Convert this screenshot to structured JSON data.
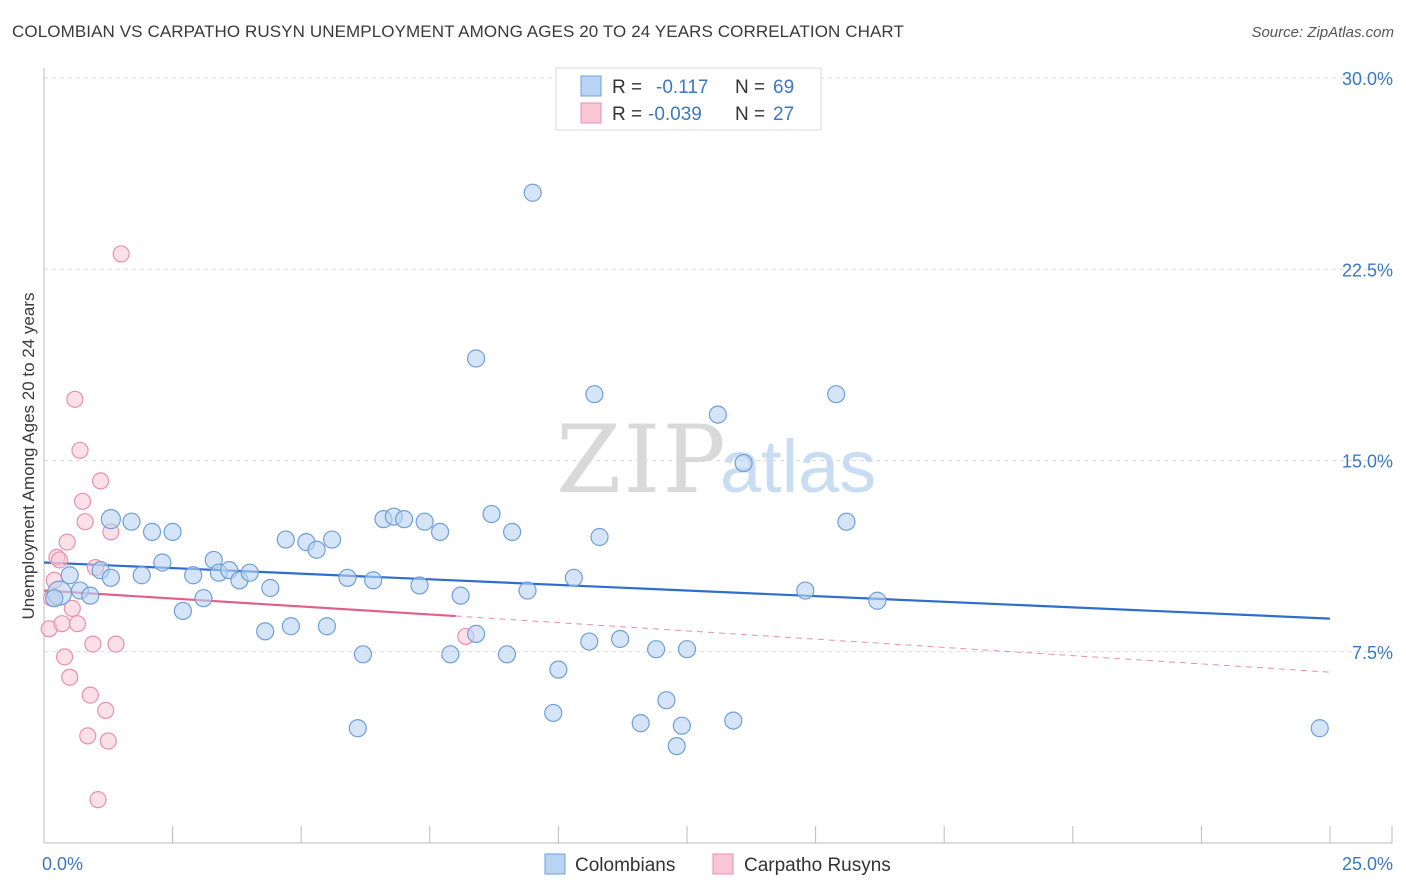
{
  "header": {
    "title": "COLOMBIAN VS CARPATHO RUSYN UNEMPLOYMENT AMONG AGES 20 TO 24 YEARS CORRELATION CHART",
    "source": "Source: ZipAtlas.com"
  },
  "watermark": {
    "zip": "ZIP",
    "atlas": "atlas"
  },
  "colors": {
    "blue_fill": "#b9d3f2",
    "blue_stroke": "#6f9fd9",
    "blue_line": "#2f6fcb",
    "pink_fill": "#f8c6d5",
    "pink_stroke": "#e890ad",
    "pink_line": "#e0608a",
    "grid": "#dcdcdc",
    "axis": "#bbbbbb",
    "tick_text": "#3b78c4"
  },
  "stats_legend": {
    "rows": [
      {
        "r_label": "R =",
        "r_value": "-0.117",
        "n_label": "N =",
        "n_value": "69"
      },
      {
        "r_label": "R =",
        "r_value": "-0.039",
        "n_label": "N =",
        "n_value": "27"
      }
    ]
  },
  "chart_data": {
    "type": "scatter",
    "title": "COLOMBIAN VS CARPATHO RUSYN UNEMPLOYMENT AMONG AGES 20 TO 24 YEARS CORRELATION CHART",
    "xlabel": "",
    "ylabel": "Unemployment Among Ages 20 to 24 years",
    "xlim": [
      0,
      25
    ],
    "ylim": [
      0,
      30
    ],
    "x_tick_labels": [
      "0.0%",
      "25.0%"
    ],
    "y_ticks": [
      7.5,
      15.0,
      22.5,
      30.0
    ],
    "y_tick_labels": [
      "7.5%",
      "15.0%",
      "22.5%",
      "30.0%"
    ],
    "legend": [
      "Colombians",
      "Carpatho Rusyns"
    ],
    "series": [
      {
        "name": "Colombians",
        "r": -0.117,
        "n": 69,
        "trend": {
          "x": [
            0,
            25
          ],
          "y": [
            11.0,
            8.8
          ]
        },
        "points": [
          [
            0.3,
            9.8,
            10
          ],
          [
            0.5,
            10.5,
            7
          ],
          [
            0.7,
            9.9,
            7
          ],
          [
            0.9,
            9.7,
            7
          ],
          [
            1.1,
            10.7,
            7
          ],
          [
            1.3,
            10.4,
            7
          ],
          [
            1.3,
            12.7,
            8
          ],
          [
            1.7,
            12.6,
            7
          ],
          [
            1.9,
            10.5,
            7
          ],
          [
            2.1,
            12.2,
            7
          ],
          [
            2.3,
            11.0,
            7
          ],
          [
            2.5,
            12.2,
            7
          ],
          [
            2.7,
            9.1,
            7
          ],
          [
            2.9,
            10.5,
            7
          ],
          [
            3.1,
            9.6,
            7
          ],
          [
            3.3,
            11.1,
            7
          ],
          [
            3.4,
            10.6,
            7
          ],
          [
            3.6,
            10.7,
            7
          ],
          [
            3.8,
            10.3,
            7
          ],
          [
            4.0,
            10.6,
            7
          ],
          [
            4.3,
            8.3,
            7
          ],
          [
            4.4,
            10.0,
            7
          ],
          [
            4.7,
            11.9,
            7
          ],
          [
            4.8,
            8.5,
            7
          ],
          [
            5.1,
            11.8,
            7
          ],
          [
            5.3,
            11.5,
            7
          ],
          [
            5.5,
            8.5,
            7
          ],
          [
            5.6,
            11.9,
            7
          ],
          [
            5.9,
            10.4,
            7
          ],
          [
            6.1,
            4.5,
            7
          ],
          [
            6.2,
            7.4,
            7
          ],
          [
            6.4,
            10.3,
            7
          ],
          [
            6.6,
            12.7,
            7
          ],
          [
            6.8,
            12.8,
            7
          ],
          [
            7.0,
            12.7,
            7
          ],
          [
            7.3,
            10.1,
            7
          ],
          [
            7.4,
            12.6,
            7
          ],
          [
            7.7,
            12.2,
            7
          ],
          [
            7.9,
            7.4,
            7
          ],
          [
            8.1,
            9.7,
            7
          ],
          [
            8.4,
            8.2,
            7
          ],
          [
            8.4,
            19.0,
            7
          ],
          [
            8.7,
            12.9,
            7
          ],
          [
            9.0,
            7.4,
            7
          ],
          [
            9.1,
            12.2,
            7
          ],
          [
            9.4,
            9.9,
            7
          ],
          [
            9.5,
            25.5,
            7
          ],
          [
            9.9,
            5.1,
            7
          ],
          [
            10.0,
            6.8,
            7
          ],
          [
            10.3,
            10.4,
            7
          ],
          [
            10.6,
            7.9,
            7
          ],
          [
            10.7,
            17.6,
            7
          ],
          [
            10.8,
            12.0,
            7
          ],
          [
            11.2,
            8.0,
            7
          ],
          [
            11.6,
            4.7,
            7
          ],
          [
            11.9,
            7.6,
            7
          ],
          [
            12.1,
            5.6,
            7
          ],
          [
            12.3,
            3.8,
            7
          ],
          [
            12.4,
            4.6,
            7
          ],
          [
            12.5,
            7.6,
            7
          ],
          [
            13.1,
            16.8,
            7
          ],
          [
            13.4,
            4.8,
            7
          ],
          [
            13.6,
            14.9,
            7
          ],
          [
            14.8,
            9.9,
            7
          ],
          [
            15.4,
            17.6,
            7
          ],
          [
            15.6,
            12.6,
            7
          ],
          [
            16.2,
            9.5,
            7
          ],
          [
            24.8,
            4.5,
            7
          ],
          [
            0.2,
            9.6,
            7
          ]
        ]
      },
      {
        "name": "Carpatho Rusyns",
        "r": -0.039,
        "n": 27,
        "trend": {
          "x": [
            0,
            8
          ],
          "y": [
            9.9,
            8.9
          ]
        },
        "trend_ext": {
          "x": [
            8,
            25
          ],
          "y": [
            8.9,
            6.7
          ]
        },
        "points": [
          [
            0.1,
            8.4,
            7
          ],
          [
            0.15,
            9.6,
            7
          ],
          [
            0.2,
            10.3,
            7
          ],
          [
            0.25,
            11.2,
            7
          ],
          [
            0.3,
            11.1,
            7
          ],
          [
            0.35,
            8.6,
            7
          ],
          [
            0.4,
            7.3,
            7
          ],
          [
            0.45,
            11.8,
            7
          ],
          [
            0.5,
            6.5,
            7
          ],
          [
            0.55,
            9.2,
            7
          ],
          [
            0.6,
            17.4,
            7
          ],
          [
            0.65,
            8.6,
            7
          ],
          [
            0.7,
            15.4,
            7
          ],
          [
            0.75,
            13.4,
            7
          ],
          [
            0.8,
            12.6,
            7
          ],
          [
            0.85,
            4.2,
            7
          ],
          [
            0.9,
            5.8,
            7
          ],
          [
            0.95,
            7.8,
            7
          ],
          [
            1.0,
            10.8,
            7
          ],
          [
            1.05,
            1.7,
            7
          ],
          [
            1.1,
            14.2,
            7
          ],
          [
            1.2,
            5.2,
            7
          ],
          [
            1.25,
            4.0,
            7
          ],
          [
            1.3,
            12.2,
            7
          ],
          [
            1.4,
            7.8,
            7
          ],
          [
            1.5,
            23.1,
            7
          ],
          [
            8.2,
            8.1,
            7
          ]
        ]
      }
    ]
  },
  "bottom_legend": {
    "items": [
      {
        "label": "Colombians"
      },
      {
        "label": "Carpatho Rusyns"
      }
    ]
  }
}
